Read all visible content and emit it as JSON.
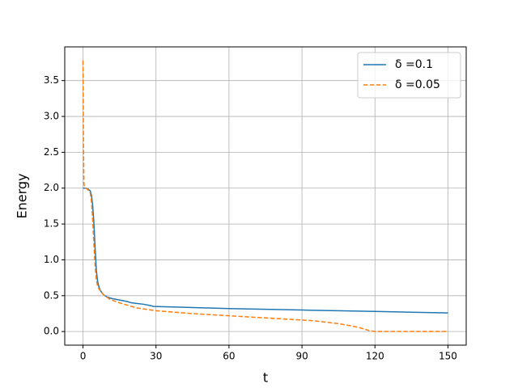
{
  "chart_data": {
    "type": "line",
    "x_label": "t",
    "y_label": "Energy",
    "xlim": [
      -7.5,
      157.5
    ],
    "ylim": [
      -0.19,
      3.97
    ],
    "xticks": [
      0,
      30,
      60,
      90,
      120,
      150
    ],
    "yticks": [
      0.0,
      0.5,
      1.0,
      1.5,
      2.0,
      2.5,
      3.0,
      3.5
    ],
    "ytick_labels": [
      "0.0",
      "0.5",
      "1.0",
      "1.5",
      "2.0",
      "2.5",
      "3.0",
      "3.5"
    ],
    "grid": true,
    "legend_position": "upper right",
    "series": [
      {
        "name": "δ =0.1",
        "color": "#1f77b4",
        "linestyle": "solid",
        "x": [
          0,
          1,
          2,
          3,
          3.5,
          4,
          4.5,
          5,
          5.5,
          6,
          6.5,
          7,
          8,
          9,
          10,
          12,
          15,
          18,
          20,
          25,
          28,
          29,
          40,
          60,
          90,
          120,
          150
        ],
        "values": [
          2.0,
          2.0,
          1.99,
          1.96,
          1.9,
          1.75,
          1.5,
          1.15,
          0.85,
          0.7,
          0.63,
          0.58,
          0.53,
          0.5,
          0.48,
          0.46,
          0.44,
          0.42,
          0.4,
          0.38,
          0.36,
          0.35,
          0.34,
          0.32,
          0.3,
          0.28,
          0.26
        ]
      },
      {
        "name": "δ =0.05",
        "color": "#ff7f0e",
        "linestyle": "dashed",
        "x": [
          0,
          0.2,
          0.4,
          1,
          2,
          3,
          3.5,
          4,
          4.5,
          5,
          5.5,
          6,
          7,
          8,
          9,
          11,
          15,
          22,
          30,
          45,
          65,
          80,
          95,
          105,
          110,
          113,
          116,
          118,
          120,
          150
        ],
        "values": [
          3.78,
          2.6,
          2.05,
          2.0,
          1.98,
          1.93,
          1.8,
          1.55,
          1.2,
          0.9,
          0.72,
          0.63,
          0.57,
          0.53,
          0.5,
          0.45,
          0.4,
          0.33,
          0.29,
          0.25,
          0.21,
          0.18,
          0.15,
          0.11,
          0.08,
          0.06,
          0.03,
          0.01,
          0.0,
          0.0
        ]
      }
    ]
  }
}
